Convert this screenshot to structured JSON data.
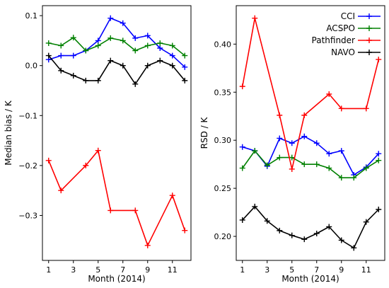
{
  "chart_data": [
    {
      "type": "line",
      "xlabel": "Month (2014)",
      "ylabel": "Median bias / K",
      "xlim": [
        0.5,
        12.5
      ],
      "ylim": [
        -0.39,
        0.12
      ],
      "xticks": [
        1,
        3,
        5,
        7,
        9,
        11
      ],
      "yticks": [
        0.1,
        0.0,
        -0.1,
        -0.2,
        -0.3
      ],
      "ytick_labels": [
        "0.1",
        "0.0",
        "−0.1",
        "−0.2",
        "−0.3"
      ],
      "grid": false,
      "series": [
        {
          "name": "CCI",
          "color": "#0000ff",
          "x": [
            1,
            2,
            3,
            4,
            5,
            6,
            7,
            8,
            9,
            10,
            11,
            12
          ],
          "y": [
            0.012,
            0.02,
            0.02,
            0.03,
            0.05,
            0.095,
            0.085,
            0.055,
            0.06,
            0.035,
            0.02,
            -0.003
          ]
        },
        {
          "name": "ACSPO",
          "color": "#008000",
          "x": [
            1,
            2,
            3,
            4,
            5,
            6,
            7,
            8,
            9,
            10,
            11,
            12
          ],
          "y": [
            0.045,
            0.04,
            0.056,
            0.03,
            0.04,
            0.055,
            0.05,
            0.03,
            0.04,
            0.045,
            0.04,
            0.02
          ]
        },
        {
          "name": "Pathfinder",
          "color": "#ff0000",
          "x": [
            1,
            2,
            4,
            5,
            6,
            8,
            9,
            11,
            12
          ],
          "y": [
            -0.19,
            -0.25,
            -0.2,
            -0.17,
            -0.29,
            -0.29,
            -0.36,
            -0.26,
            -0.33
          ]
        },
        {
          "name": "NAVO",
          "color": "#000000",
          "x": [
            1,
            2,
            3,
            4,
            5,
            6,
            7,
            8,
            9,
            10,
            11,
            12
          ],
          "y": [
            0.02,
            -0.01,
            -0.02,
            -0.03,
            -0.03,
            0.01,
            0.0,
            -0.037,
            0.0,
            0.01,
            0.0,
            -0.03
          ]
        }
      ]
    },
    {
      "type": "line",
      "xlabel": "Month (2014)",
      "ylabel": "RSD / K",
      "xlim": [
        0.5,
        12.5
      ],
      "ylim": [
        0.175,
        0.44
      ],
      "xticks": [
        1,
        3,
        5,
        7,
        9,
        11
      ],
      "yticks": [
        0.2,
        0.25,
        0.3,
        0.35,
        0.4
      ],
      "ytick_labels": [
        "0.20",
        "0.25",
        "0.30",
        "0.35",
        "0.40"
      ],
      "grid": false,
      "legend_position": "top-right",
      "series": [
        {
          "name": "CCI",
          "color": "#0000ff",
          "x": [
            1,
            2,
            3,
            4,
            5,
            6,
            7,
            8,
            9,
            10,
            11,
            12
          ],
          "y": [
            0.293,
            0.289,
            0.273,
            0.302,
            0.297,
            0.304,
            0.297,
            0.286,
            0.289,
            0.264,
            0.272,
            0.286
          ]
        },
        {
          "name": "ACSPO",
          "color": "#008000",
          "x": [
            1,
            2,
            3,
            4,
            5,
            6,
            7,
            8,
            9,
            10,
            11,
            12
          ],
          "y": [
            0.271,
            0.289,
            0.274,
            0.282,
            0.282,
            0.275,
            0.275,
            0.271,
            0.261,
            0.261,
            0.271,
            0.279
          ]
        },
        {
          "name": "Pathfinder",
          "color": "#ff0000",
          "x": [
            1,
            2,
            4,
            5,
            6,
            8,
            9,
            11,
            12
          ],
          "y": [
            0.356,
            0.427,
            0.326,
            0.27,
            0.326,
            0.348,
            0.333,
            0.333,
            0.384
          ]
        },
        {
          "name": "NAVO",
          "color": "#000000",
          "x": [
            1,
            2,
            3,
            4,
            5,
            6,
            7,
            8,
            9,
            10,
            11,
            12
          ],
          "y": [
            0.217,
            0.231,
            0.216,
            0.206,
            0.201,
            0.197,
            0.203,
            0.21,
            0.196,
            0.188,
            0.215,
            0.228
          ]
        }
      ]
    }
  ]
}
